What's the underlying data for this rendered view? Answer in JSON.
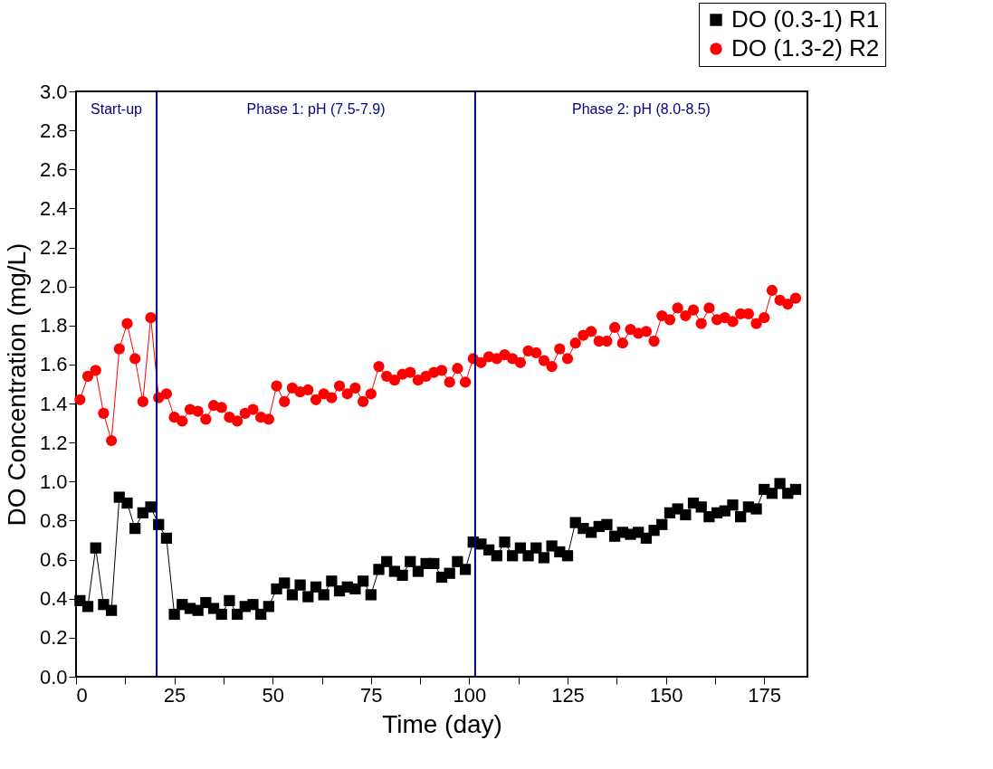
{
  "chart_data": {
    "type": "line",
    "xlabel": "Time (day)",
    "ylabel": "DO Concentration (mg/L)",
    "xlim": [
      0,
      186
    ],
    "xticks": [
      0,
      {
        "value": 12.5,
        "label": null
      },
      25,
      {
        "value": 37.5,
        "label": null
      },
      50,
      {
        "value": 62.5,
        "label": null
      },
      75,
      {
        "value": 87.5,
        "label": null
      },
      100,
      {
        "value": 112.5,
        "label": null
      },
      125,
      {
        "value": 137.5,
        "label": null
      },
      150,
      {
        "value": 162.5,
        "label": null
      },
      175
    ],
    "ylim": [
      0,
      3
    ],
    "yticks": [
      {
        "value": 0,
        "label": "0.0"
      },
      0.2,
      0.4,
      0.6,
      0.8,
      {
        "value": 1,
        "label": "1.0"
      },
      1.2,
      1.4,
      1.6,
      1.8,
      {
        "value": 2,
        "label": "2.0"
      },
      2.2,
      2.4,
      2.6,
      2.8,
      {
        "value": 3,
        "label": "3.0"
      }
    ],
    "x": [
      1,
      3,
      5,
      7,
      9,
      11,
      13,
      15,
      17,
      19,
      21,
      23,
      25,
      27,
      29,
      31,
      33,
      35,
      37,
      39,
      41,
      43,
      45,
      47,
      49,
      51,
      53,
      55,
      57,
      59,
      61,
      63,
      65,
      67,
      69,
      71,
      73,
      75,
      77,
      79,
      81,
      83,
      85,
      87,
      89,
      91,
      93,
      95,
      97,
      99,
      101,
      103,
      105,
      107,
      109,
      111,
      113,
      115,
      117,
      119,
      121,
      123,
      125,
      127,
      129,
      131,
      133,
      135,
      137,
      139,
      141,
      143,
      145,
      147,
      149,
      151,
      153,
      155,
      157,
      159,
      161,
      163,
      165,
      167,
      169,
      171,
      173,
      175,
      177,
      179,
      181,
      183
    ],
    "series": [
      {
        "name": "DO (0.3-1) R1",
        "color": "#000000",
        "marker": "square",
        "values": [
          0.39,
          0.36,
          0.66,
          0.37,
          0.34,
          0.92,
          0.89,
          0.76,
          0.84,
          0.87,
          0.78,
          0.71,
          0.32,
          0.37,
          0.35,
          0.34,
          0.38,
          0.35,
          0.32,
          0.39,
          0.32,
          0.36,
          0.37,
          0.32,
          0.36,
          0.45,
          0.48,
          0.42,
          0.47,
          0.41,
          0.46,
          0.42,
          0.49,
          0.44,
          0.46,
          0.45,
          0.49,
          0.42,
          0.55,
          0.59,
          0.54,
          0.52,
          0.59,
          0.54,
          0.58,
          0.58,
          0.51,
          0.53,
          0.59,
          0.55,
          0.69,
          0.68,
          0.65,
          0.62,
          0.69,
          0.62,
          0.66,
          0.62,
          0.66,
          0.61,
          0.67,
          0.64,
          0.62,
          0.79,
          0.76,
          0.74,
          0.77,
          0.78,
          0.72,
          0.74,
          0.73,
          0.74,
          0.71,
          0.75,
          0.78,
          0.84,
          0.86,
          0.83,
          0.89,
          0.87,
          0.82,
          0.84,
          0.85,
          0.88,
          0.82,
          0.87,
          0.86,
          0.96,
          0.94,
          0.99,
          0.94,
          0.96
        ]
      },
      {
        "name": "DO (1.3-2) R2",
        "color": "#ff0000",
        "marker": "circle",
        "values": [
          1.42,
          1.54,
          1.57,
          1.35,
          1.21,
          1.68,
          1.81,
          1.63,
          1.41,
          1.84,
          1.43,
          1.45,
          1.33,
          1.31,
          1.37,
          1.36,
          1.32,
          1.39,
          1.38,
          1.33,
          1.31,
          1.35,
          1.37,
          1.33,
          1.32,
          1.49,
          1.41,
          1.48,
          1.46,
          1.47,
          1.42,
          1.45,
          1.43,
          1.49,
          1.45,
          1.48,
          1.41,
          1.45,
          1.59,
          1.54,
          1.52,
          1.55,
          1.56,
          1.52,
          1.54,
          1.56,
          1.57,
          1.51,
          1.58,
          1.51,
          1.63,
          1.61,
          1.64,
          1.63,
          1.65,
          1.63,
          1.61,
          1.67,
          1.66,
          1.62,
          1.59,
          1.68,
          1.63,
          1.71,
          1.75,
          1.77,
          1.72,
          1.72,
          1.79,
          1.71,
          1.78,
          1.76,
          1.77,
          1.72,
          1.85,
          1.83,
          1.89,
          1.85,
          1.88,
          1.81,
          1.89,
          1.83,
          1.84,
          1.82,
          1.86,
          1.86,
          1.81,
          1.84,
          1.98,
          1.93,
          1.91,
          1.94
        ]
      }
    ],
    "ref_lines": [
      {
        "axis": "x",
        "value": 20.5,
        "color": "#000080"
      },
      {
        "axis": "x",
        "value": 101.5,
        "color": "#000080"
      }
    ],
    "annotations": [
      "Start-up",
      "Phase 1: pH (7.5-7.9)",
      "Phase 2: pH (8.0-8.5)"
    ],
    "legend": "top right",
    "grid": false,
    "line_style": "solid"
  }
}
